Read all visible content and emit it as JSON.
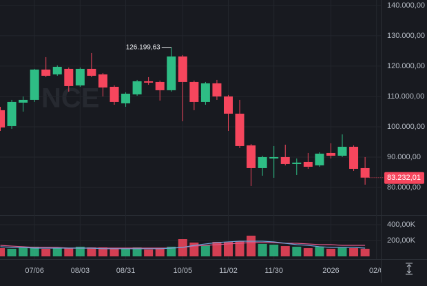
{
  "chart_data": {
    "type": "candlestick",
    "watermark": "NCE",
    "up_color": "#2ebd85",
    "down_color": "#f6465d",
    "open": [
      105455,
      100227,
      107955,
      108864,
      118864,
      117273,
      119091,
      113636,
      119091,
      117273,
      113182,
      107727,
      110682,
      115000,
      114773,
      112045,
      123182,
      114773,
      108182,
      114318,
      110000,
      104318,
      93864,
      86364,
      89545,
      90000,
      87727,
      88409,
      87273,
      91364,
      90455,
      93409,
      86364
    ],
    "high": [
      106591,
      108864,
      110000,
      119091,
      122955,
      120227,
      119545,
      119545,
      124318,
      117727,
      113636,
      111364,
      115455,
      116364,
      115227,
      126199.63,
      123636,
      115227,
      114773,
      115455,
      110455,
      108864,
      94318,
      90455,
      93636,
      94091,
      89545,
      91364,
      91591,
      94545,
      97500,
      93864,
      90000
    ],
    "low": [
      98636,
      99318,
      105000,
      108182,
      116364,
      116818,
      111591,
      113182,
      116364,
      110000,
      107273,
      106591,
      110227,
      113864,
      108636,
      111591,
      101818,
      105455,
      107273,
      108864,
      98636,
      92955,
      80455,
      83864,
      83182,
      87273,
      84091,
      86136,
      86818,
      89545,
      90000,
      85455,
      80909
    ],
    "close": [
      99773,
      108182,
      108864,
      118864,
      116818,
      119773,
      113409,
      119091,
      116818,
      112955,
      108182,
      110909,
      115000,
      114545,
      112045,
      123182,
      114773,
      108182,
      114318,
      110000,
      104318,
      93636,
      86364,
      90000,
      90000,
      87727,
      88182,
      86818,
      91136,
      90455,
      93409,
      86136,
      83232.01
    ],
    "high_label": "126.199,63",
    "last_label": "83.232,01",
    "ylim": [
      70900,
      141800
    ],
    "yticks": [
      {
        "value": 140000,
        "label": "140.000,00"
      },
      {
        "value": 130000,
        "label": "130.000,00"
      },
      {
        "value": 120000,
        "label": "120.000,00"
      },
      {
        "value": 110000,
        "label": "110.000,00"
      },
      {
        "value": 100000,
        "label": "100.000,00"
      },
      {
        "value": 90000,
        "label": "90.000,00"
      },
      {
        "value": 80000,
        "label": "80.000,00"
      }
    ],
    "xticks": [
      {
        "value": 3,
        "label": "07/06"
      },
      {
        "value": 7,
        "label": "08/03"
      },
      {
        "value": 11,
        "label": "08/31"
      },
      {
        "value": 16,
        "label": "10/05"
      },
      {
        "value": 20,
        "label": "11/02"
      },
      {
        "value": 24,
        "label": "11/30"
      },
      {
        "value": 29,
        "label": "2026"
      },
      {
        "value": 33,
        "label": "02/0"
      }
    ],
    "grid": true,
    "volume": {
      "values": [
        104,
        96,
        113,
        122,
        96,
        113,
        104,
        122,
        113,
        113,
        104,
        96,
        113,
        87,
        104,
        122,
        217,
        174,
        139,
        183,
        183,
        191,
        261,
        157,
        148,
        130,
        122,
        104,
        122,
        96,
        113,
        104,
        96
      ],
      "ylim": [
        0,
        504
      ],
      "yticks": [
        {
          "value": 400,
          "label": "400,00K"
        },
        {
          "value": 200,
          "label": "200,00K"
        }
      ],
      "ma": [
        {
          "color": "#e0578a",
          "values": [
            139,
            130,
            122,
            113,
            113,
            113,
            104,
            104,
            104,
            104,
            104,
            104,
            104,
            104,
            104,
            104,
            113,
            130,
            139,
            148,
            157,
            165,
            174,
            174,
            174,
            165,
            165,
            157,
            148,
            148,
            139,
            139,
            139
          ]
        },
        {
          "color": "#6fa3d8",
          "values": [
            122,
            113,
            113,
            104,
            104,
            104,
            104,
            104,
            104,
            96,
            96,
            96,
            96,
            96,
            96,
            104,
            113,
            139,
            157,
            174,
            183,
            191,
            191,
            191,
            183,
            165,
            148,
            139,
            122,
            113,
            113,
            113,
            104
          ]
        }
      ]
    }
  }
}
